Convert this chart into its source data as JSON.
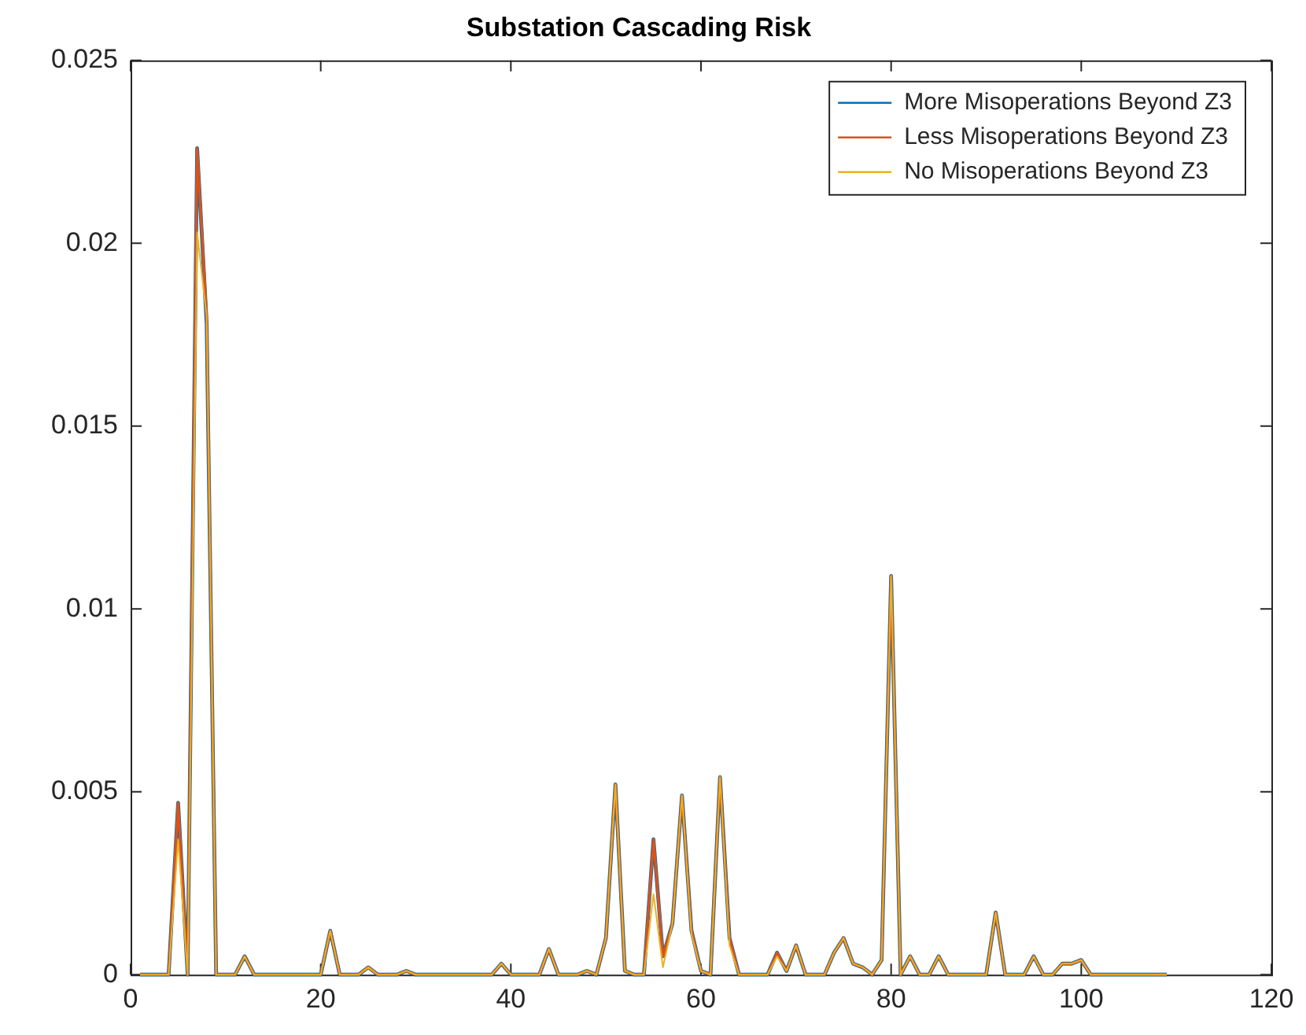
{
  "chart_data": {
    "type": "line",
    "title": "Substation Cascading Risk",
    "x": [
      1,
      2,
      3,
      4,
      5,
      6,
      7,
      8,
      9,
      10,
      11,
      12,
      13,
      14,
      15,
      16,
      17,
      18,
      19,
      20,
      21,
      22,
      23,
      24,
      25,
      26,
      27,
      28,
      29,
      30,
      31,
      32,
      33,
      34,
      35,
      36,
      37,
      38,
      39,
      40,
      41,
      42,
      43,
      44,
      45,
      46,
      47,
      48,
      49,
      50,
      51,
      52,
      53,
      54,
      55,
      56,
      57,
      58,
      59,
      60,
      61,
      62,
      63,
      64,
      65,
      66,
      67,
      68,
      69,
      70,
      71,
      72,
      73,
      74,
      75,
      76,
      77,
      78,
      79,
      80,
      81,
      82,
      83,
      84,
      85,
      86,
      87,
      88,
      89,
      90,
      91,
      92,
      93,
      94,
      95,
      96,
      97,
      98,
      99,
      100,
      101,
      102,
      103,
      104,
      105,
      106,
      107,
      108,
      109
    ],
    "series": [
      {
        "name": "More Misoperations Beyond Z3",
        "color": "#0072bd",
        "values": [
          0,
          0,
          0,
          0,
          0.0047,
          0,
          0.0226,
          0.0178,
          0,
          0,
          0,
          0.0005,
          0,
          0,
          0,
          0,
          0,
          0,
          0,
          0,
          0.0012,
          0,
          0,
          0,
          0.0002,
          0,
          0,
          0,
          0.0001,
          0,
          0,
          0,
          0,
          0,
          0,
          0,
          0,
          0,
          0.0003,
          0,
          0,
          0,
          0,
          0.0007,
          0,
          0,
          0,
          0.0001,
          0,
          0.001,
          0.0052,
          0.0001,
          0,
          0,
          0.0037,
          0.0005,
          0.0014,
          0.0049,
          0.0012,
          0.0001,
          0,
          0.0054,
          0.001,
          0,
          0,
          0,
          0,
          0.0006,
          0.0001,
          0.0008,
          0,
          0,
          0,
          0.0006,
          0.001,
          0.0003,
          0.0002,
          0,
          0.0004,
          0.0109,
          0,
          0.0005,
          0,
          0,
          0.0005,
          0,
          0,
          0,
          0,
          0,
          0.0017,
          0,
          0,
          0,
          0.0005,
          0,
          0,
          0.0003,
          0.0003,
          0.0004,
          0,
          0,
          0,
          0,
          0,
          0,
          0,
          0,
          0
        ]
      },
      {
        "name": "Less Misoperations Beyond Z3",
        "color": "#d95319",
        "values": [
          0,
          0,
          0,
          0,
          0.0047,
          0,
          0.0226,
          0.018,
          0,
          0,
          0,
          0.0005,
          0,
          0,
          0,
          0,
          0,
          0,
          0,
          0,
          0.0012,
          0,
          0,
          0,
          0.0002,
          0,
          0,
          0,
          0.0001,
          0,
          0,
          0,
          0,
          0,
          0,
          0,
          0,
          0,
          0.0003,
          0,
          0,
          0,
          0,
          0.0007,
          0,
          0,
          0,
          0.0001,
          0,
          0.001,
          0.0052,
          0.0001,
          0,
          0,
          0.0037,
          0.0005,
          0.0014,
          0.0049,
          0.0012,
          0.0001,
          0,
          0.0054,
          0.001,
          0,
          0,
          0,
          0,
          0.0006,
          0.0001,
          0.0008,
          0,
          0,
          0,
          0.0006,
          0.001,
          0.0003,
          0.0002,
          0,
          0.0004,
          0.0109,
          0,
          0.0005,
          0,
          0,
          0.0005,
          0,
          0,
          0,
          0,
          0,
          0.0017,
          0,
          0,
          0,
          0.0005,
          0,
          0,
          0.0003,
          0.0003,
          0.0004,
          0,
          0,
          0,
          0,
          0,
          0,
          0,
          0,
          0
        ]
      },
      {
        "name": "No Misoperations Beyond Z3",
        "color": "#edb120",
        "values": [
          0,
          0,
          0,
          0,
          0.0037,
          0,
          0.0203,
          0.018,
          0,
          0,
          0,
          0.0005,
          0,
          0,
          0,
          0,
          0,
          0,
          0,
          0,
          0.0012,
          0,
          0,
          0,
          0.0002,
          0,
          0,
          0,
          0.0001,
          0,
          0,
          0,
          0,
          0,
          0,
          0,
          0,
          0,
          0.0003,
          0,
          0,
          0,
          0,
          0.0007,
          0,
          0,
          0,
          0.0001,
          0,
          0.001,
          0.0052,
          0.0001,
          0,
          0,
          0.0022,
          0.0002,
          0.0014,
          0.0049,
          0.0011,
          0.0001,
          0,
          0.0054,
          0.0008,
          0,
          0,
          0,
          0,
          0.0005,
          0.0001,
          0.0008,
          0,
          0,
          0,
          0.0006,
          0.001,
          0.0003,
          0.0002,
          0,
          0.0004,
          0.0109,
          0,
          0.0005,
          0,
          0,
          0.0005,
          0,
          0,
          0,
          0,
          0,
          0.0017,
          0,
          0,
          0,
          0.0005,
          0,
          0,
          0.0003,
          0.0003,
          0.0004,
          0,
          0,
          0,
          0,
          0,
          0,
          0,
          0,
          0
        ]
      }
    ],
    "xlim": [
      0,
      120
    ],
    "xticks": [
      0,
      20,
      40,
      60,
      80,
      100,
      120
    ],
    "ylim": [
      0,
      0.025
    ],
    "yticks": [
      0,
      0.005,
      0.01,
      0.015,
      0.02,
      0.025
    ],
    "legend": "top right",
    "marker": "none",
    "line_style": "solid"
  }
}
